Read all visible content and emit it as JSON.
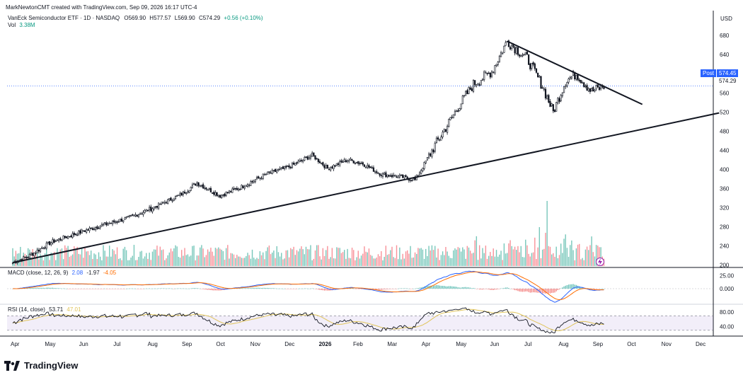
{
  "attribution": "MarkNewtonCMT created with TradingView.com, Sep 09, 2026 16:17 UTC-4",
  "legend": {
    "symbol": "VanEck Semiconductor ETF · 1D · NASDAQ",
    "o_label": "O",
    "o_value": "569.90",
    "h_label": "H",
    "h_value": "577.57",
    "l_label": "L",
    "l_value": "569.90",
    "c_label": "C",
    "c_value": "574.29",
    "change": "+0.56 (+0.10%)",
    "vol_label": "Vol",
    "vol_value": "3.38M"
  },
  "macd_legend": {
    "label": "MACD (close, 12, 26, 9)",
    "v1": "2.08",
    "v2": "-1.97",
    "v3": "-4.05"
  },
  "rsi_legend": {
    "label": "RSI (14, close)",
    "v1": "53.71",
    "v2": "47.01"
  },
  "price_axis": {
    "currency": "USD",
    "post_label": "Post",
    "post_value": "574.45",
    "last_value": "574.29"
  },
  "colors": {
    "up": "#089981",
    "down": "#f23645",
    "candle": "#131722",
    "macd": "#2962ff",
    "signal": "#ff6d00",
    "rsi": "#131722",
    "rsi_ma": "#e0c45a",
    "rsi_band": "#7e57c2"
  },
  "brand": "TradingView",
  "chart_data": {
    "type": "candlestick",
    "x_labels": [
      "Apr",
      "May",
      "Jun",
      "Jul",
      "Aug",
      "Sep",
      "Oct",
      "Nov",
      "Dec",
      "2026",
      "Feb",
      "Mar",
      "Apr",
      "May",
      "Jun",
      "Jul",
      "Aug",
      "Sep",
      "Oct",
      "Nov",
      "Dec"
    ],
    "y_ticks": [
      200,
      240,
      280,
      320,
      360,
      400,
      440,
      480,
      520,
      560,
      600,
      640,
      680
    ],
    "ylim": [
      195,
      695
    ],
    "anchors": [
      {
        "i": 0,
        "p": 205
      },
      {
        "i": 10,
        "p": 218
      },
      {
        "i": 25,
        "p": 248
      },
      {
        "i": 45,
        "p": 270
      },
      {
        "i": 60,
        "p": 285
      },
      {
        "i": 75,
        "p": 298
      },
      {
        "i": 90,
        "p": 318
      },
      {
        "i": 110,
        "p": 348
      },
      {
        "i": 120,
        "p": 372
      },
      {
        "i": 135,
        "p": 345
      },
      {
        "i": 148,
        "p": 362
      },
      {
        "i": 165,
        "p": 390
      },
      {
        "i": 180,
        "p": 405
      },
      {
        "i": 195,
        "p": 430
      },
      {
        "i": 205,
        "p": 402
      },
      {
        "i": 218,
        "p": 420
      },
      {
        "i": 228,
        "p": 412
      },
      {
        "i": 240,
        "p": 390
      },
      {
        "i": 255,
        "p": 383
      },
      {
        "i": 262,
        "p": 378
      },
      {
        "i": 275,
        "p": 450
      },
      {
        "i": 290,
        "p": 530
      },
      {
        "i": 300,
        "p": 578
      },
      {
        "i": 312,
        "p": 605
      },
      {
        "i": 322,
        "p": 668
      },
      {
        "i": 335,
        "p": 632
      },
      {
        "i": 345,
        "p": 574
      },
      {
        "i": 352,
        "p": 520
      },
      {
        "i": 360,
        "p": 585
      },
      {
        "i": 367,
        "p": 600
      },
      {
        "i": 377,
        "p": 563
      },
      {
        "i": 385,
        "p": 574
      }
    ],
    "trendlines": [
      {
        "name": "support",
        "from": {
          "i": 0,
          "p": 205
        },
        "to": {
          "i": 460,
          "p": 518
        }
      },
      {
        "name": "resistance",
        "from": {
          "i": 322,
          "p": 668
        },
        "to": {
          "i": 410,
          "p": 536
        }
      }
    ],
    "macd": {
      "ylim": [
        -20,
        35
      ],
      "ticks": [
        25,
        0
      ]
    },
    "rsi": {
      "ylim": [
        20,
        90
      ],
      "ticks": [
        80,
        40
      ],
      "band": [
        30,
        70
      ]
    }
  }
}
